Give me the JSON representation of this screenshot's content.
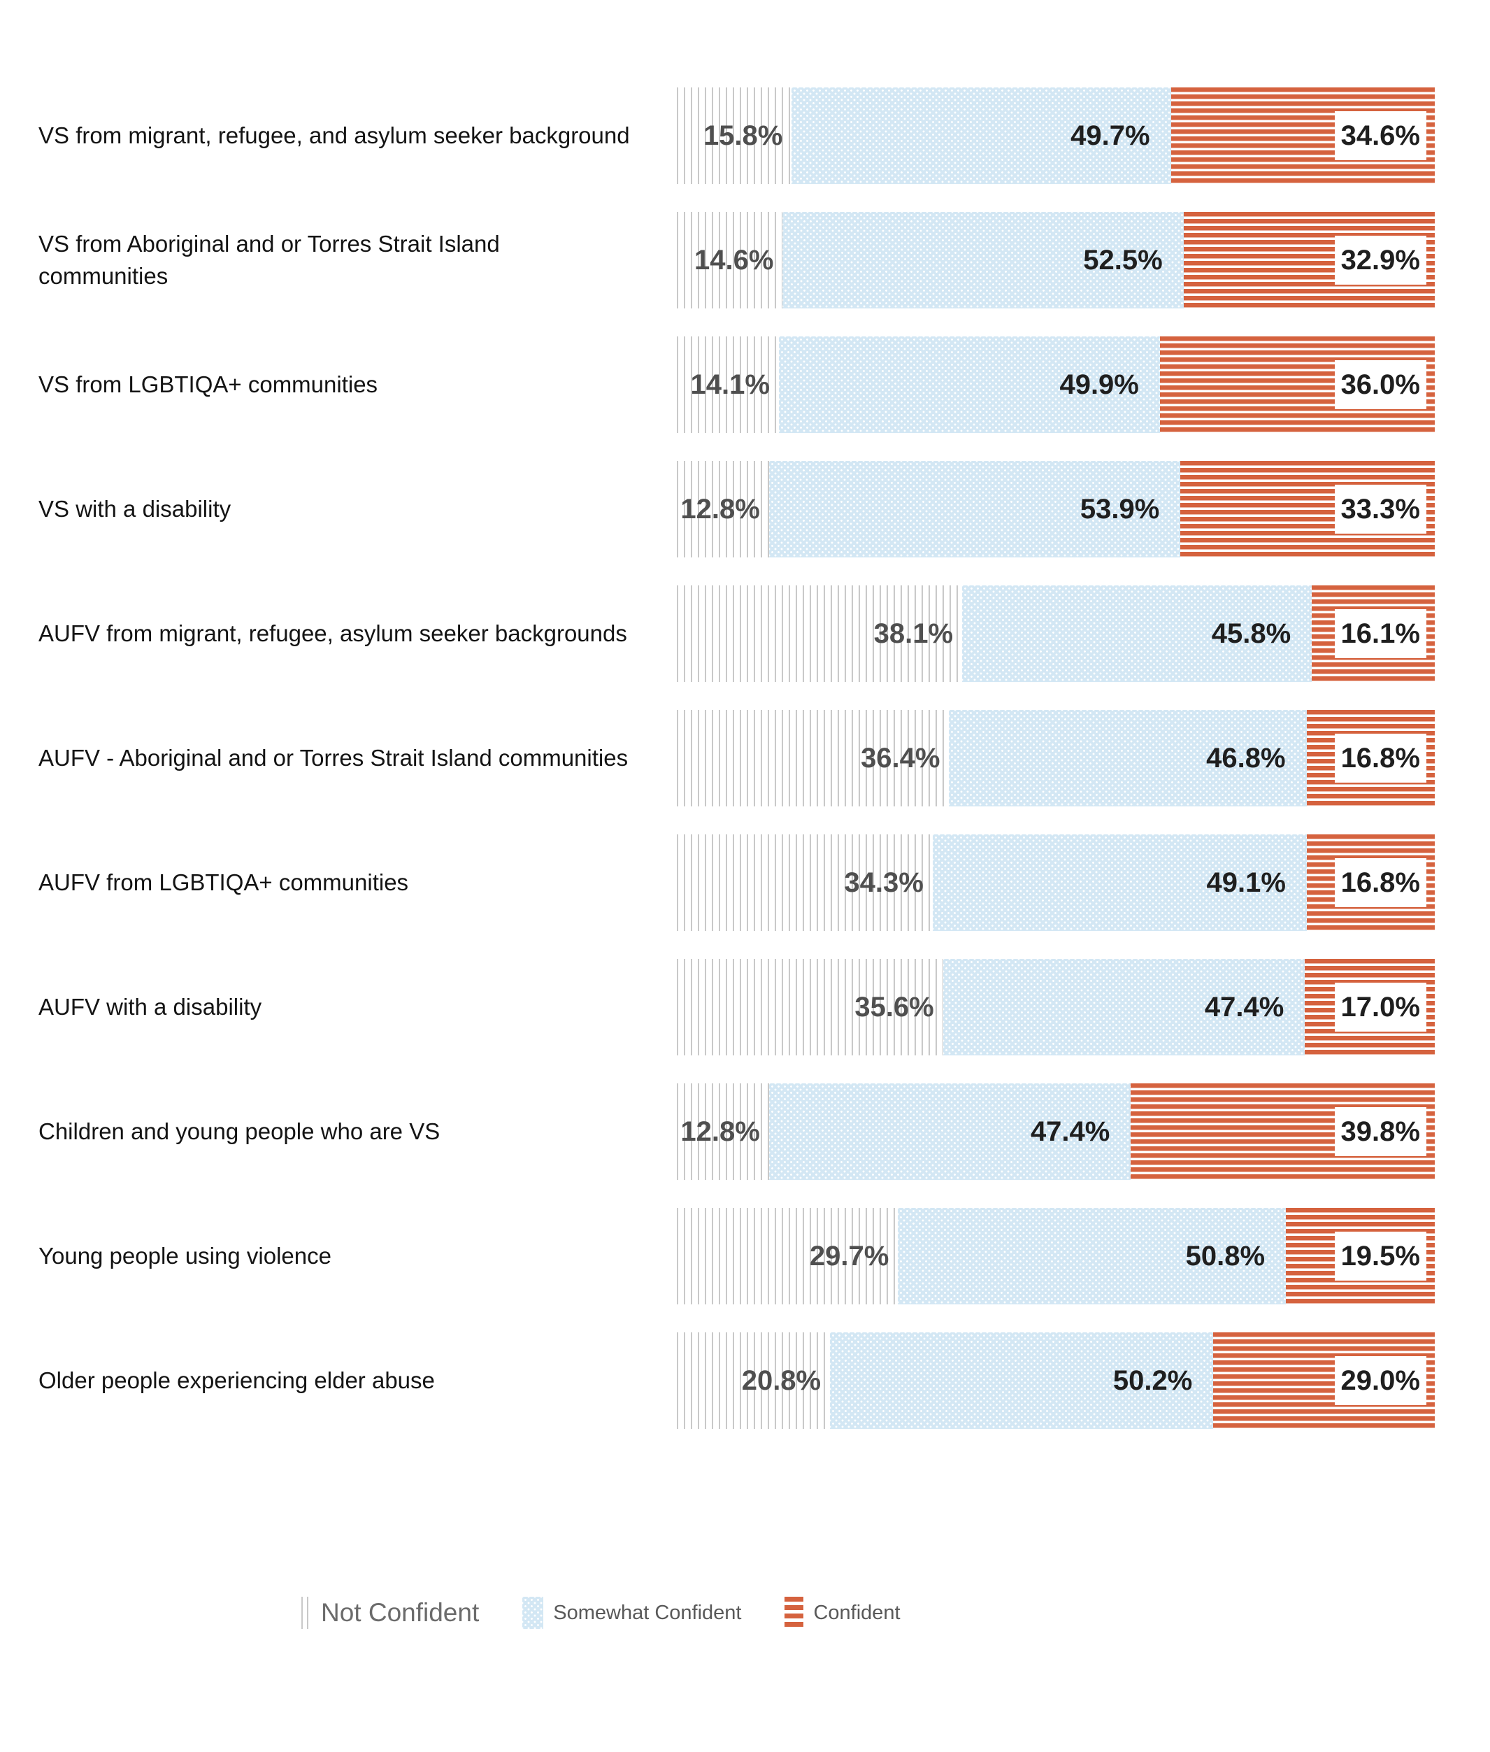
{
  "chart_data": {
    "type": "bar",
    "orientation": "horizontal",
    "stacked_percent": true,
    "xlim": [
      0,
      100
    ],
    "grid": false,
    "legend_position": "bottom",
    "categories": [
      "VS from migrant, refugee, and asylum seeker background",
      "VS from Aboriginal and or Torres Strait Island communities",
      "VS from LGBTIQA+ communities",
      "VS with a disability",
      "AUFV from migrant, refugee, asylum seeker backgrounds",
      "AUFV - Aboriginal and or Torres Strait Island communities",
      "AUFV from LGBTIQA+ communities",
      "AUFV with a disability",
      "Children and young people who are VS",
      "Young people using violence",
      "Older people experiencing elder abuse"
    ],
    "series": [
      {
        "name": "Not Confident",
        "pattern": "vertical-gray-stripes",
        "color": "#c9c9c9",
        "values": [
          15.8,
          14.6,
          14.1,
          12.8,
          38.1,
          36.4,
          34.3,
          35.6,
          12.8,
          29.7,
          20.8
        ]
      },
      {
        "name": "Somewhat Confident",
        "pattern": "light-blue-dotted",
        "color": "#d3e7f4",
        "values": [
          49.7,
          52.5,
          49.9,
          53.9,
          45.8,
          46.8,
          49.1,
          47.4,
          47.4,
          50.8,
          50.2
        ]
      },
      {
        "name": "Confident",
        "pattern": "orange-horizontal-stripes",
        "color": "#d5623e",
        "values": [
          34.6,
          32.9,
          36.0,
          33.3,
          16.1,
          16.8,
          16.8,
          17.0,
          39.8,
          19.5,
          29.0
        ]
      }
    ],
    "value_labels": [
      [
        "15.8%",
        "49.7%",
        "34.6%"
      ],
      [
        "14.6%",
        "52.5%",
        "32.9%"
      ],
      [
        "14.1%",
        "49.9%",
        "36.0%"
      ],
      [
        "12.8%",
        "53.9%",
        "33.3%"
      ],
      [
        "38.1%",
        "45.8%",
        "16.1%"
      ],
      [
        "36.4%",
        "46.8%",
        "16.8%"
      ],
      [
        "34.3%",
        "49.1%",
        "16.8%"
      ],
      [
        "35.6%",
        "47.4%",
        "17.0%"
      ],
      [
        "12.8%",
        "47.4%",
        "39.8%"
      ],
      [
        "29.7%",
        "50.8%",
        "19.5%"
      ],
      [
        "20.8%",
        "50.2%",
        "29.0%"
      ]
    ]
  },
  "legend": {
    "items": [
      {
        "label": "Not Confident",
        "swatch": "vertical-gray-stripes-icon"
      },
      {
        "label": "Somewhat Confident",
        "swatch": "blue-dotted-icon"
      },
      {
        "label": "Confident",
        "swatch": "orange-stripes-icon"
      }
    ]
  },
  "colors": {
    "background": "#ffffff",
    "not_confident_stripe": "#c9c9c9",
    "somewhat_confident_bg": "#d3e7f4",
    "confident_stripe": "#d5623e",
    "value_label_gray": "#4f4f4f",
    "value_label_dark": "#1f1f1f",
    "category_text": "#141414",
    "legend_text": "#595959"
  }
}
